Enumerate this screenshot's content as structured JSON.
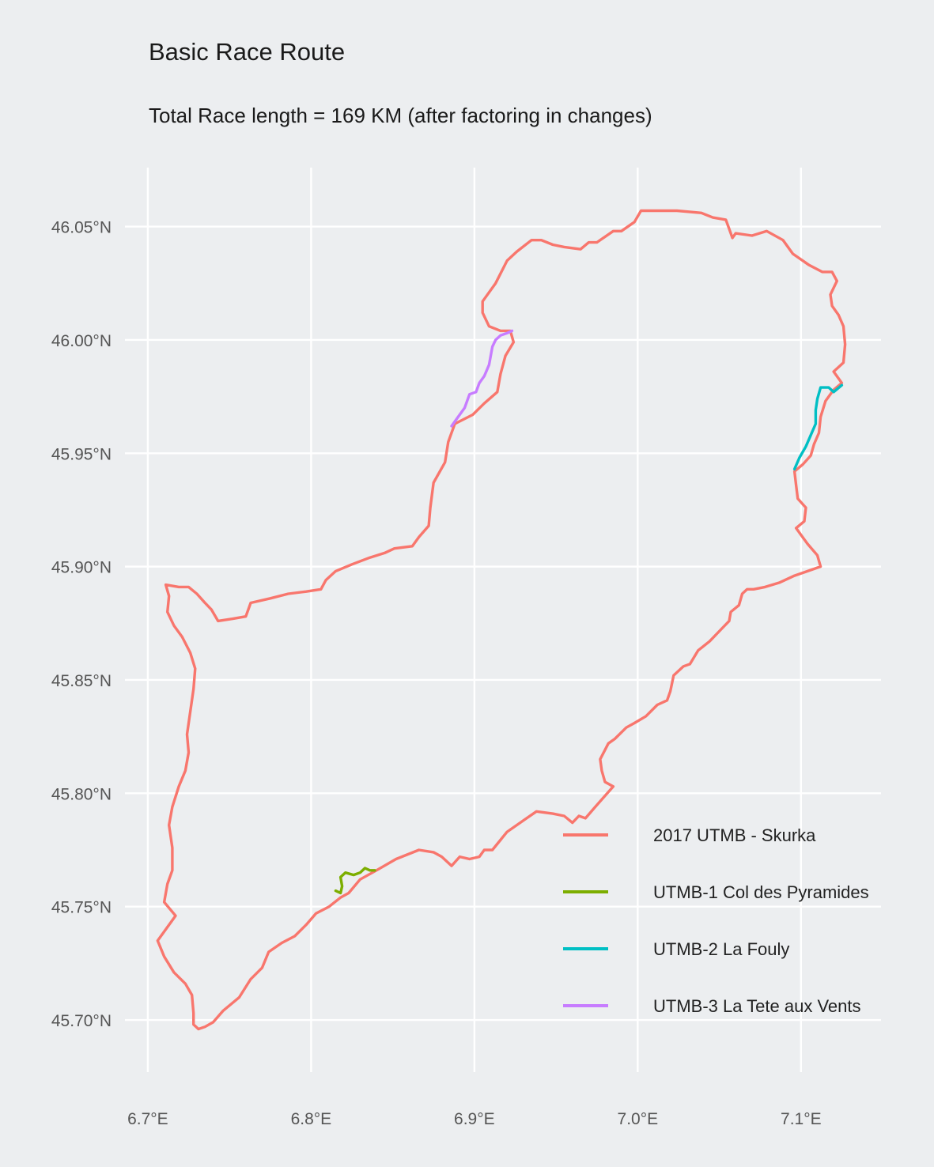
{
  "title": "Basic Race Route",
  "subtitle": "Total Race length = 169 KM (after factoring in changes)",
  "chart_data": {
    "type": "line",
    "title": "Basic Race Route",
    "subtitle": "Total Race length = 169 KM (after factoring in changes)",
    "xlabel": "",
    "ylabel": "",
    "xlim": [
      6.686,
      7.149
    ],
    "ylim": [
      45.677,
      46.076
    ],
    "x_ticks": [
      {
        "value": 6.7,
        "label": "6.7°E"
      },
      {
        "value": 6.8,
        "label": "6.8°E"
      },
      {
        "value": 6.9,
        "label": "6.9°E"
      },
      {
        "value": 7.0,
        "label": "7.0°E"
      },
      {
        "value": 7.1,
        "label": "7.1°E"
      }
    ],
    "y_ticks": [
      {
        "value": 45.7,
        "label": "45.70°N"
      },
      {
        "value": 45.75,
        "label": "45.75°N"
      },
      {
        "value": 45.8,
        "label": "45.80°N"
      },
      {
        "value": 45.85,
        "label": "45.85°N"
      },
      {
        "value": 45.9,
        "label": "45.90°N"
      },
      {
        "value": 45.95,
        "label": "45.95°N"
      },
      {
        "value": 46.0,
        "label": "46.00°N"
      },
      {
        "value": 46.05,
        "label": "46.05°N"
      }
    ],
    "grid": true,
    "legend_position": "bottom-right",
    "series": [
      {
        "name": "2017 UTMB - Skurka",
        "color": "#f8766d",
        "points": [
          [
            6.818,
            45.754
          ],
          [
            6.823,
            45.756
          ],
          [
            6.83,
            45.762
          ],
          [
            6.84,
            45.766
          ],
          [
            6.852,
            45.771
          ],
          [
            6.866,
            45.775
          ],
          [
            6.875,
            45.774
          ],
          [
            6.88,
            45.772
          ],
          [
            6.886,
            45.768
          ],
          [
            6.891,
            45.772
          ],
          [
            6.897,
            45.771
          ],
          [
            6.903,
            45.772
          ],
          [
            6.906,
            45.775
          ],
          [
            6.911,
            45.775
          ],
          [
            6.92,
            45.783
          ],
          [
            6.932,
            45.789
          ],
          [
            6.938,
            45.792
          ],
          [
            6.948,
            45.791
          ],
          [
            6.955,
            45.79
          ],
          [
            6.96,
            45.787
          ],
          [
            6.964,
            45.79
          ],
          [
            6.968,
            45.789
          ],
          [
            6.974,
            45.794
          ],
          [
            6.985,
            45.803
          ],
          [
            6.98,
            45.805
          ],
          [
            6.978,
            45.81
          ],
          [
            6.977,
            45.815
          ],
          [
            6.982,
            45.822
          ],
          [
            6.986,
            45.824
          ],
          [
            6.993,
            45.829
          ],
          [
            6.998,
            45.831
          ],
          [
            7.005,
            45.834
          ],
          [
            7.012,
            45.839
          ],
          [
            7.018,
            45.841
          ],
          [
            7.02,
            45.845
          ],
          [
            7.022,
            45.852
          ],
          [
            7.028,
            45.856
          ],
          [
            7.032,
            45.857
          ],
          [
            7.037,
            45.863
          ],
          [
            7.044,
            45.867
          ],
          [
            7.052,
            45.873
          ],
          [
            7.056,
            45.876
          ],
          [
            7.057,
            45.88
          ],
          [
            7.062,
            45.883
          ],
          [
            7.064,
            45.888
          ],
          [
            7.067,
            45.89
          ],
          [
            7.071,
            45.89
          ],
          [
            7.078,
            45.891
          ],
          [
            7.087,
            45.893
          ],
          [
            7.096,
            45.896
          ],
          [
            7.104,
            45.898
          ],
          [
            7.112,
            45.9
          ],
          [
            7.11,
            45.905
          ],
          [
            7.104,
            45.91
          ],
          [
            7.1,
            45.914
          ],
          [
            7.097,
            45.917
          ],
          [
            7.102,
            45.92
          ],
          [
            7.103,
            45.926
          ],
          [
            7.098,
            45.93
          ],
          [
            7.097,
            45.936
          ],
          [
            7.096,
            45.942
          ],
          [
            7.101,
            45.945
          ],
          [
            7.106,
            45.949
          ],
          [
            7.108,
            45.954
          ],
          [
            7.111,
            45.959
          ],
          [
            7.112,
            45.966
          ],
          [
            7.115,
            45.973
          ],
          [
            7.12,
            45.978
          ],
          [
            7.125,
            45.981
          ],
          [
            7.12,
            45.986
          ],
          [
            7.126,
            45.99
          ],
          [
            7.127,
            45.998
          ],
          [
            7.126,
            46.006
          ],
          [
            7.123,
            46.011
          ],
          [
            7.119,
            46.015
          ],
          [
            7.118,
            46.02
          ],
          [
            7.122,
            46.026
          ],
          [
            7.119,
            46.03
          ],
          [
            7.113,
            46.03
          ],
          [
            7.105,
            46.033
          ],
          [
            7.095,
            46.038
          ],
          [
            7.089,
            46.044
          ],
          [
            7.079,
            46.048
          ],
          [
            7.07,
            46.046
          ],
          [
            7.06,
            46.047
          ],
          [
            7.058,
            46.045
          ],
          [
            7.056,
            46.049
          ],
          [
            7.054,
            46.053
          ],
          [
            7.046,
            46.054
          ],
          [
            7.039,
            46.056
          ],
          [
            7.024,
            46.057
          ],
          [
            7.011,
            46.057
          ],
          [
            7.002,
            46.057
          ],
          [
            6.998,
            46.052
          ],
          [
            6.99,
            46.048
          ],
          [
            6.985,
            46.048
          ],
          [
            6.975,
            46.043
          ],
          [
            6.97,
            46.043
          ],
          [
            6.965,
            46.04
          ],
          [
            6.955,
            46.041
          ],
          [
            6.948,
            46.042
          ],
          [
            6.941,
            46.044
          ],
          [
            6.935,
            46.044
          ],
          [
            6.926,
            46.039
          ],
          [
            6.92,
            46.035
          ],
          [
            6.913,
            46.025
          ],
          [
            6.905,
            46.017
          ],
          [
            6.905,
            46.012
          ],
          [
            6.909,
            46.006
          ],
          [
            6.916,
            46.004
          ],
          [
            6.922,
            46.004
          ],
          [
            6.924,
            45.999
          ],
          [
            6.919,
            45.993
          ],
          [
            6.916,
            45.985
          ],
          [
            6.914,
            45.977
          ],
          [
            6.906,
            45.972
          ],
          [
            6.899,
            45.967
          ],
          [
            6.888,
            45.963
          ],
          [
            6.884,
            45.955
          ],
          [
            6.882,
            45.946
          ],
          [
            6.875,
            45.937
          ],
          [
            6.873,
            45.926
          ],
          [
            6.872,
            45.918
          ],
          [
            6.866,
            45.913
          ],
          [
            6.862,
            45.909
          ],
          [
            6.851,
            45.908
          ],
          [
            6.845,
            45.906
          ],
          [
            6.836,
            45.904
          ],
          [
            6.825,
            45.901
          ],
          [
            6.815,
            45.898
          ],
          [
            6.809,
            45.894
          ],
          [
            6.806,
            45.89
          ],
          [
            6.797,
            45.889
          ],
          [
            6.786,
            45.888
          ],
          [
            6.775,
            45.886
          ],
          [
            6.763,
            45.884
          ],
          [
            6.76,
            45.878
          ],
          [
            6.752,
            45.877
          ],
          [
            6.743,
            45.876
          ],
          [
            6.739,
            45.881
          ],
          [
            6.735,
            45.884
          ],
          [
            6.73,
            45.888
          ],
          [
            6.725,
            45.891
          ],
          [
            6.719,
            45.891
          ],
          [
            6.711,
            45.892
          ],
          [
            6.713,
            45.887
          ],
          [
            6.712,
            45.88
          ],
          [
            6.716,
            45.874
          ],
          [
            6.721,
            45.869
          ],
          [
            6.726,
            45.862
          ],
          [
            6.729,
            45.855
          ],
          [
            6.728,
            45.846
          ],
          [
            6.726,
            45.836
          ],
          [
            6.724,
            45.826
          ],
          [
            6.725,
            45.818
          ],
          [
            6.723,
            45.81
          ],
          [
            6.719,
            45.803
          ],
          [
            6.715,
            45.794
          ],
          [
            6.713,
            45.786
          ],
          [
            6.715,
            45.776
          ],
          [
            6.715,
            45.766
          ],
          [
            6.712,
            45.76
          ],
          [
            6.71,
            45.752
          ],
          [
            6.717,
            45.746
          ],
          [
            6.71,
            45.739
          ],
          [
            6.706,
            45.735
          ],
          [
            6.71,
            45.728
          ],
          [
            6.716,
            45.721
          ],
          [
            6.723,
            45.716
          ],
          [
            6.727,
            45.711
          ],
          [
            6.728,
            45.703
          ],
          [
            6.728,
            45.698
          ],
          [
            6.731,
            45.696
          ],
          [
            6.735,
            45.697
          ],
          [
            6.74,
            45.699
          ],
          [
            6.746,
            45.704
          ],
          [
            6.756,
            45.71
          ],
          [
            6.763,
            45.718
          ],
          [
            6.77,
            45.723
          ],
          [
            6.774,
            45.73
          ],
          [
            6.782,
            45.734
          ],
          [
            6.79,
            45.737
          ],
          [
            6.797,
            45.742
          ],
          [
            6.803,
            45.747
          ],
          [
            6.811,
            45.75
          ],
          [
            6.818,
            45.754
          ]
        ]
      },
      {
        "name": "UTMB-1 Col des Pyramides",
        "color": "#7cae00",
        "points": [
          [
            6.815,
            45.757
          ],
          [
            6.818,
            45.756
          ],
          [
            6.819,
            45.759
          ],
          [
            6.818,
            45.763
          ],
          [
            6.821,
            45.765
          ],
          [
            6.826,
            45.764
          ],
          [
            6.83,
            45.765
          ],
          [
            6.833,
            45.767
          ],
          [
            6.836,
            45.766
          ],
          [
            6.839,
            45.766
          ]
        ]
      },
      {
        "name": "UTMB-2 La Fouly",
        "color": "#00bfc4",
        "points": [
          [
            7.096,
            45.943
          ],
          [
            7.099,
            45.948
          ],
          [
            7.103,
            45.953
          ],
          [
            7.106,
            45.958
          ],
          [
            7.109,
            45.963
          ],
          [
            7.109,
            45.969
          ],
          [
            7.11,
            45.974
          ],
          [
            7.112,
            45.979
          ],
          [
            7.117,
            45.979
          ],
          [
            7.12,
            45.977
          ],
          [
            7.125,
            45.98
          ]
        ]
      },
      {
        "name": "UTMB-3 La Tete aux Vents",
        "color": "#c77cff",
        "points": [
          [
            6.886,
            45.962
          ],
          [
            6.89,
            45.966
          ],
          [
            6.894,
            45.97
          ],
          [
            6.897,
            45.976
          ],
          [
            6.901,
            45.977
          ],
          [
            6.903,
            45.981
          ],
          [
            6.906,
            45.984
          ],
          [
            6.909,
            45.989
          ],
          [
            6.911,
            45.997
          ],
          [
            6.913,
            46.0
          ],
          [
            6.916,
            46.002
          ],
          [
            6.92,
            46.003
          ],
          [
            6.923,
            46.004
          ]
        ]
      }
    ]
  }
}
